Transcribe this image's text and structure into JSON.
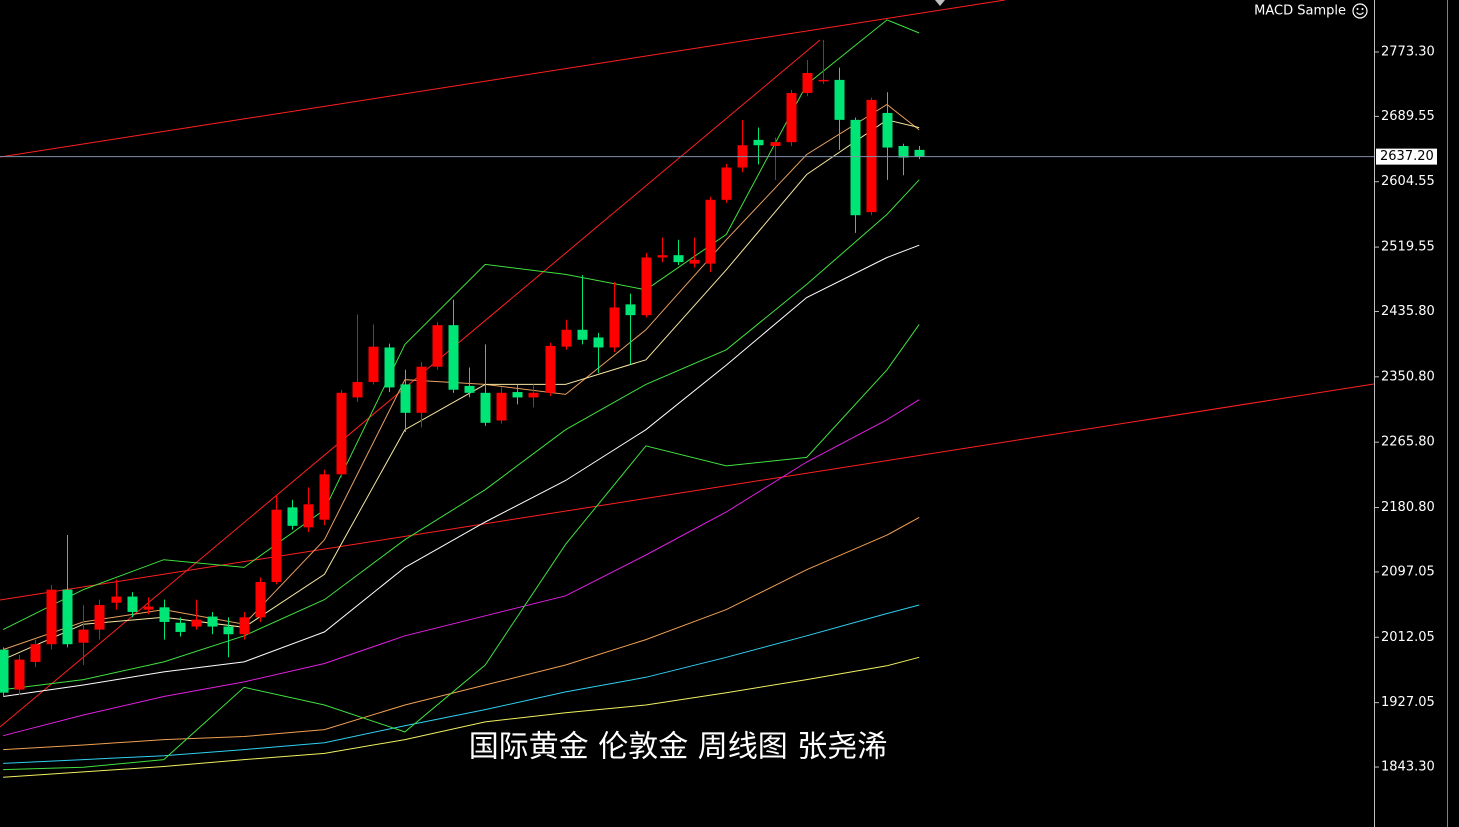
{
  "chart_data": {
    "type": "candlestick",
    "indicator": "MACD Sample",
    "annotation": "国际黄金 伦敦金 周线图 张尧浠",
    "xlim": [
      -0.19,
      85.3
    ],
    "ylim": [
      1765.3,
      2840.9
    ],
    "yticks": [
      {
        "value": 2773.3,
        "label": "2773.30"
      },
      {
        "value": 2689.55,
        "label": "2689.55"
      },
      {
        "value": 2604.55,
        "label": "2604.55"
      },
      {
        "value": 2519.55,
        "label": "2519.55"
      },
      {
        "value": 2435.8,
        "label": "2435.80"
      },
      {
        "value": 2350.8,
        "label": "2350.80"
      },
      {
        "value": 2265.8,
        "label": "2265.80"
      },
      {
        "value": 2180.8,
        "label": "2180.80"
      },
      {
        "value": 2097.05,
        "label": "2097.05"
      },
      {
        "value": 2012.05,
        "label": "2012.05"
      },
      {
        "value": 1927.05,
        "label": "1927.05"
      },
      {
        "value": 1843.3,
        "label": "1843.30"
      }
    ],
    "current_price": {
      "value": 2637.2,
      "label": "2637.20"
    },
    "up_color": "#ff0000",
    "down_color": "#00e676",
    "x": [
      0,
      1,
      2,
      3,
      4,
      5,
      6,
      7,
      8,
      9,
      10,
      11,
      12,
      13,
      14,
      15,
      16,
      17,
      18,
      19,
      20,
      21,
      22,
      23,
      24,
      25,
      26,
      27,
      28,
      29,
      30,
      31,
      32,
      33,
      34,
      35,
      36,
      37,
      38,
      39,
      40,
      41,
      42,
      43,
      44,
      45,
      46,
      47,
      48,
      49,
      50,
      51,
      52,
      53,
      54,
      55,
      56,
      57
    ],
    "open": [
      1996,
      1944,
      1980,
      2003,
      2074,
      2005,
      2022,
      2057,
      2065,
      2048,
      2051,
      2031,
      2026,
      2039,
      2026,
      2016,
      2038,
      2084,
      2181,
      2155,
      2165,
      2224,
      2324,
      2344,
      2389,
      2341,
      2304,
      2364,
      2418,
      2339,
      2330,
      2294,
      2331,
      2324,
      2330,
      2390,
      2412,
      2402,
      2389,
      2445,
      2431,
      2506,
      2509,
      2498,
      2498,
      2581,
      2623,
      2659,
      2651,
      2656,
      2720,
      2736,
      2737,
      2685,
      2565,
      2694,
      2651,
      2646
    ],
    "high": [
      1999,
      1989,
      2009,
      2080,
      2145,
      2054,
      2061,
      2087,
      2071,
      2064,
      2061,
      2038,
      2061,
      2045,
      2038,
      2045,
      2090,
      2197,
      2191,
      2207,
      2230,
      2334,
      2432,
      2419,
      2394,
      2360,
      2370,
      2422,
      2451,
      2363,
      2393,
      2337,
      2341,
      2341,
      2395,
      2425,
      2483,
      2408,
      2474,
      2459,
      2512,
      2532,
      2529,
      2532,
      2585,
      2628,
      2685,
      2675,
      2662,
      2724,
      2763,
      2789,
      2753,
      2688,
      2714,
      2721,
      2654,
      2651
    ],
    "low": [
      1935,
      1937,
      1973,
      1996,
      1999,
      1976,
      2009,
      2048,
      2038,
      2042,
      2009,
      2013,
      2022,
      2016,
      1986,
      2009,
      2032,
      2081,
      2152,
      2149,
      2158,
      2220,
      2318,
      2341,
      2331,
      2279,
      2285,
      2360,
      2330,
      2324,
      2287,
      2290,
      2315,
      2311,
      2326,
      2386,
      2393,
      2356,
      2383,
      2367,
      2428,
      2500,
      2496,
      2493,
      2487,
      2577,
      2617,
      2627,
      2607,
      2651,
      2716,
      2732,
      2646,
      2538,
      2561,
      2607,
      2613,
      2634
    ],
    "close": [
      1940,
      1983,
      2003,
      2074,
      2003,
      2022,
      2054,
      2065,
      2045,
      2052,
      2032,
      2019,
      2035,
      2026,
      2016,
      2038,
      2084,
      2178,
      2157,
      2185,
      2224,
      2330,
      2344,
      2390,
      2337,
      2304,
      2364,
      2418,
      2334,
      2330,
      2291,
      2330,
      2324,
      2330,
      2391,
      2412,
      2399,
      2389,
      2441,
      2431,
      2506,
      2509,
      2500,
      2503,
      2581,
      2623,
      2652,
      2652,
      2656,
      2720,
      2746,
      2737,
      2685,
      2561,
      2711,
      2649,
      2636,
      2637.2
    ],
    "line_x": [
      0,
      5,
      10,
      15,
      20,
      25,
      30,
      35,
      40,
      45,
      50,
      55,
      57
    ],
    "lines": [
      {
        "color": "#ffffff",
        "values": [
          1935,
          1950,
          1967,
          1980,
          2019,
          2103,
          2162,
          2216,
          2282,
          2366,
          2454,
          2506,
          2522
        ]
      },
      {
        "color": "#e020e0",
        "values": [
          1884,
          1911,
          1935,
          1954,
          1978,
          2014,
          2040,
          2066,
          2119,
          2175,
          2240,
          2295,
          2321
        ]
      },
      {
        "color": "#f0a050",
        "values": [
          1866,
          1872,
          1879,
          1883,
          1892,
          1924,
          1950,
          1976,
          2009,
          2048,
          2100,
          2145,
          2168
        ]
      },
      {
        "color": "#30d0f0",
        "values": [
          1848,
          1853,
          1858,
          1866,
          1875,
          1897,
          1918,
          1941,
          1960,
          1986,
          2014,
          2043,
          2054
        ]
      },
      {
        "color": "#f0f060",
        "values": [
          1830,
          1837,
          1844,
          1853,
          1861,
          1879,
          1902,
          1914,
          1924,
          1940,
          1957,
          1975,
          1986
        ]
      },
      {
        "color": "#40e040",
        "values": [
          1944,
          1957,
          1980,
          2014,
          2061,
          2139,
          2204,
          2282,
          2341,
          2386,
          2471,
          2562,
          2607
        ]
      },
      {
        "color": "#40e040",
        "values": [
          2022,
          2074,
          2113,
          2103,
          2178,
          2393,
          2497,
          2484,
          2464,
          2536,
          2731,
          2815,
          2798
        ]
      },
      {
        "color": "#40e040",
        "values": [
          1840,
          1843,
          1853,
          1947,
          1924,
          1889,
          1976,
          2133,
          2261,
          2235,
          2246,
          2360,
          2419
        ]
      },
      {
        "color": "#e8a060",
        "values": [
          1996,
          2032,
          2048,
          2029,
          2139,
          2347,
          2341,
          2328,
          2412,
          2529,
          2640,
          2705,
          2672
        ]
      },
      {
        "color": "#f5e6a0",
        "values": [
          1983,
          2029,
          2038,
          2025,
          2094,
          2282,
          2341,
          2341,
          2373,
          2490,
          2614,
          2685,
          2675
        ]
      }
    ]
  }
}
